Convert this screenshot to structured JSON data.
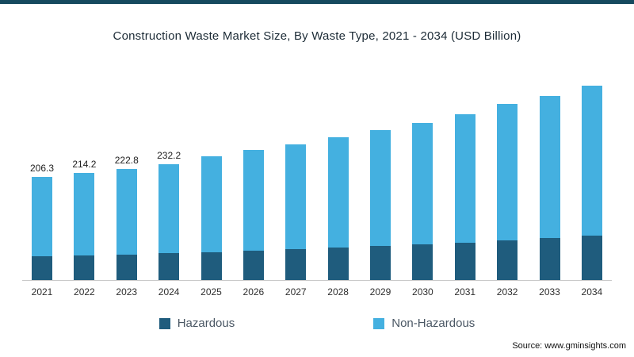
{
  "page": {
    "top_border_color": "#164a5f",
    "background": "#ffffff",
    "axis_line_color": "#c9c9c9"
  },
  "chart_data": {
    "type": "bar",
    "stacked": true,
    "title": "Construction Waste Market Size, By Waste Type, 2021 - 2034 (USD Billion)",
    "xlabel": "",
    "ylabel": "",
    "ylim": [
      0,
      430
    ],
    "grid": false,
    "legend_position": "bottom",
    "categories": [
      "2021",
      "2022",
      "2023",
      "2024",
      "2025",
      "2026",
      "2027",
      "2028",
      "2029",
      "2030",
      "2031",
      "2032",
      "2033",
      "2034"
    ],
    "series": [
      {
        "name": "Hazardous",
        "color": "#1f5c7d",
        "values": [
          47.5,
          49.3,
          51.2,
          53.4,
          56.1,
          58.9,
          61.8,
          64.9,
          68.1,
          71.6,
          75.3,
          79.4,
          83.7,
          88.3
        ]
      },
      {
        "name": "Non-Hazardous",
        "color": "#44b0e0",
        "values": [
          158.8,
          164.9,
          171.6,
          178.8,
          192.0,
          200.9,
          210.1,
          220.7,
          231.1,
          242.9,
          255.9,
          272.4,
          284.7,
          299.9
        ]
      }
    ],
    "totals": [
      206.3,
      214.2,
      222.8,
      232.2,
      248.1,
      259.8,
      271.9,
      285.6,
      299.2,
      314.5,
      331.2,
      351.8,
      368.4,
      388.2
    ],
    "data_labels": [
      "206.3",
      "214.2",
      "222.8",
      "232.2",
      null,
      null,
      null,
      null,
      null,
      null,
      null,
      null,
      null,
      null
    ]
  },
  "legend": {
    "items": [
      {
        "label": "Hazardous",
        "color": "#1f5c7d"
      },
      {
        "label": "Non-Hazardous",
        "color": "#44b0e0"
      }
    ]
  },
  "source": {
    "text": "Source: www.gminsights.com"
  }
}
